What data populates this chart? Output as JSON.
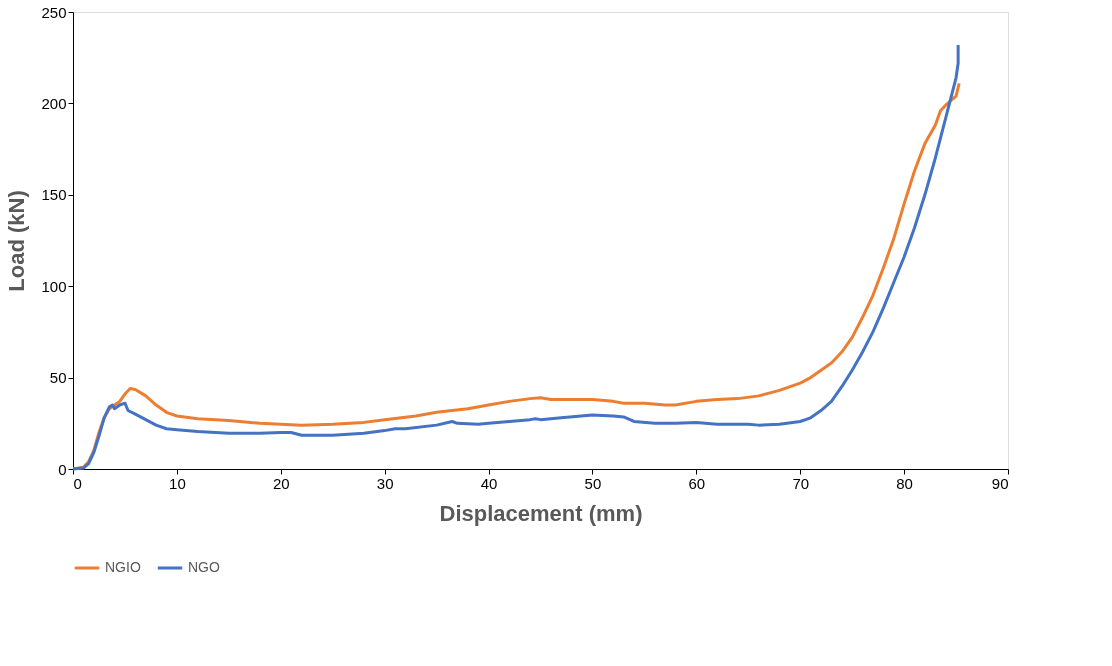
{
  "chart_data": {
    "type": "line",
    "xlabel": "Displacement (mm)",
    "ylabel": "Load (kN)",
    "xlim": [
      0,
      90
    ],
    "xticks": [
      0,
      10,
      20,
      30,
      40,
      50,
      60,
      70,
      80,
      90
    ],
    "ylim": [
      0,
      250
    ],
    "yticks": [
      0,
      50,
      100,
      150,
      200,
      250
    ],
    "grid": false,
    "legend": "bottom",
    "marker": "none",
    "line_style": "solid",
    "series": [
      {
        "name": "NGIO",
        "color": "#ed7d31",
        "x": [
          0,
          1,
          1.5,
          2,
          2.5,
          3,
          3.5,
          4,
          4.5,
          5,
          5.5,
          6,
          7,
          8,
          9,
          10,
          12,
          15,
          18,
          20,
          22,
          25,
          28,
          30,
          33,
          35,
          38,
          40,
          42,
          44,
          45,
          46,
          48,
          50,
          52,
          53,
          55,
          57,
          58,
          60,
          62,
          64,
          66,
          68,
          70,
          71,
          72,
          73,
          74,
          75,
          76,
          77,
          78,
          79,
          80,
          81,
          82,
          83,
          83.5,
          84,
          85,
          85.3
        ],
        "values": [
          0,
          1,
          4,
          10,
          20,
          28,
          33,
          35,
          37,
          41,
          44,
          43.5,
          40,
          35,
          31,
          29,
          27.5,
          26.5,
          25,
          24.5,
          24,
          24.5,
          25.5,
          27,
          29,
          31,
          33,
          35,
          37,
          38.5,
          39,
          38,
          38,
          38,
          37,
          36,
          36,
          35,
          35,
          37,
          38,
          38.5,
          40,
          43,
          47,
          50,
          54,
          58,
          64,
          72,
          83,
          95,
          110,
          126,
          145,
          163,
          178,
          188,
          196,
          199,
          204,
          211
        ]
      },
      {
        "name": "NGO",
        "color": "#4472c4",
        "x": [
          0,
          1,
          1.5,
          2,
          2.5,
          3,
          3.5,
          3.8,
          4,
          4.5,
          5,
          5.3,
          6,
          7,
          8,
          9,
          10,
          12,
          15,
          18,
          20,
          21,
          22,
          25,
          28,
          30,
          31,
          32,
          35,
          36.5,
          37,
          39,
          40,
          42,
          44,
          44.5,
          45,
          47,
          50,
          52,
          53,
          54,
          56,
          58,
          60,
          62,
          65,
          66,
          68,
          70,
          71,
          72,
          73,
          74,
          75,
          76,
          77,
          78,
          79,
          80,
          81,
          82,
          83,
          84,
          85,
          85.2,
          85.2
        ],
        "values": [
          0,
          0.5,
          3,
          9,
          18,
          28,
          34,
          35,
          33,
          35,
          36,
          32,
          30,
          27,
          24,
          22,
          21.5,
          20.5,
          19.5,
          19.5,
          20,
          20,
          18.5,
          18.5,
          19.5,
          21,
          22,
          22,
          24,
          26,
          25,
          24.5,
          25,
          26,
          27,
          27.5,
          27,
          28,
          29.5,
          29,
          28.5,
          26,
          25,
          25,
          25.5,
          24.5,
          24.5,
          24,
          24.5,
          26,
          28,
          32,
          37,
          45,
          54,
          64,
          75,
          88,
          102,
          116,
          132,
          150,
          170,
          192,
          214,
          222,
          232
        ]
      }
    ]
  }
}
